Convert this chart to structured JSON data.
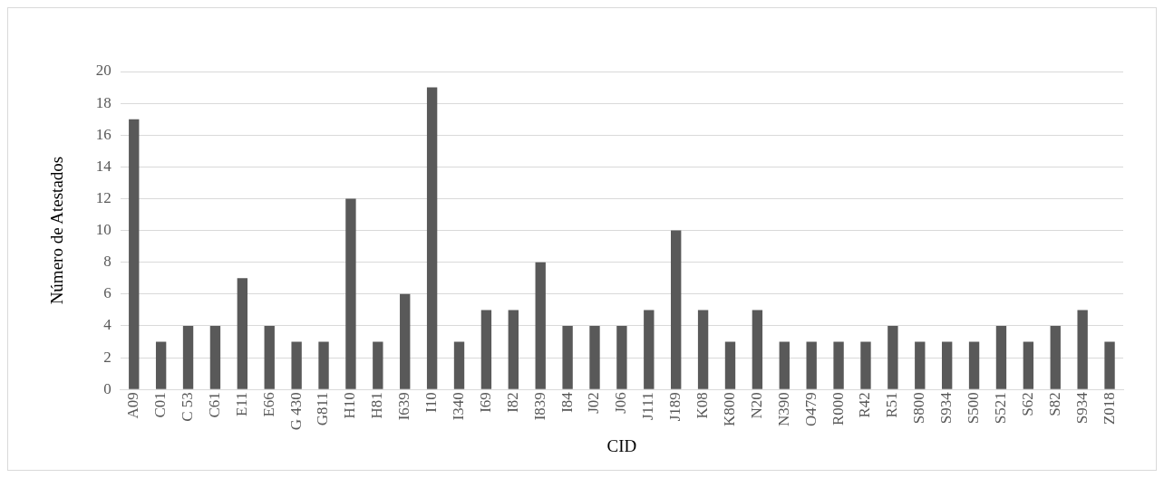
{
  "chart_data": {
    "type": "bar",
    "xlabel": "CID",
    "ylabel": "Número de Atestados",
    "categories": [
      "A09",
      "C01",
      "C 53",
      "C61",
      "E11",
      "E66",
      "G 430",
      "G811",
      "H10",
      "H81",
      "I639",
      "I10",
      "I340",
      "I69",
      "I82",
      "I839",
      "I84",
      "J02",
      "J06",
      "J111",
      "J189",
      "K08",
      "K800",
      "N20",
      "N390",
      "O479",
      "R000",
      "R42",
      "R51",
      "S800",
      "S934",
      "S500",
      "S521",
      "S62",
      "S82",
      "S934",
      "Z018"
    ],
    "values": [
      17,
      3,
      4,
      4,
      7,
      4,
      3,
      3,
      12,
      3,
      6,
      19,
      3,
      5,
      5,
      8,
      4,
      4,
      4,
      5,
      10,
      5,
      3,
      5,
      3,
      3,
      3,
      3,
      4,
      3,
      3,
      3,
      4,
      3,
      4,
      5,
      3
    ],
    "color": "#595959",
    "ylim": [
      0,
      20
    ],
    "yticks": [
      0,
      2,
      4,
      6,
      8,
      10,
      12,
      14,
      16,
      18,
      20
    ],
    "grid": "y",
    "legend": false
  }
}
